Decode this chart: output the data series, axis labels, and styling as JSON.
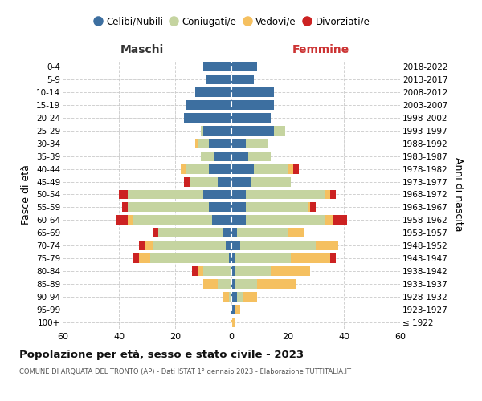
{
  "age_groups": [
    "100+",
    "95-99",
    "90-94",
    "85-89",
    "80-84",
    "75-79",
    "70-74",
    "65-69",
    "60-64",
    "55-59",
    "50-54",
    "45-49",
    "40-44",
    "35-39",
    "30-34",
    "25-29",
    "20-24",
    "15-19",
    "10-14",
    "5-9",
    "0-4"
  ],
  "birth_years": [
    "≤ 1922",
    "1923-1927",
    "1928-1932",
    "1933-1937",
    "1938-1942",
    "1943-1947",
    "1948-1952",
    "1953-1957",
    "1958-1962",
    "1963-1967",
    "1968-1972",
    "1973-1977",
    "1978-1982",
    "1983-1987",
    "1988-1992",
    "1993-1997",
    "1998-2002",
    "2003-2007",
    "2008-2012",
    "2013-2017",
    "2018-2022"
  ],
  "colors": {
    "celibe": "#3d6fa0",
    "coniugato": "#c5d4a0",
    "vedovo": "#f5c060",
    "divorziato": "#cc2222"
  },
  "male": {
    "celibe": [
      0,
      0,
      0,
      0,
      0,
      1,
      2,
      3,
      7,
      8,
      10,
      5,
      8,
      6,
      8,
      10,
      17,
      16,
      13,
      9,
      10
    ],
    "coniugato": [
      0,
      0,
      1,
      5,
      10,
      28,
      26,
      23,
      28,
      29,
      27,
      10,
      8,
      5,
      4,
      1,
      0,
      0,
      0,
      0,
      0
    ],
    "vedovo": [
      0,
      0,
      2,
      5,
      2,
      4,
      3,
      0,
      2,
      0,
      0,
      0,
      2,
      0,
      1,
      0,
      0,
      0,
      0,
      0,
      0
    ],
    "divorziato": [
      0,
      0,
      0,
      0,
      2,
      2,
      2,
      2,
      4,
      2,
      3,
      2,
      0,
      0,
      0,
      0,
      0,
      0,
      0,
      0,
      0
    ]
  },
  "female": {
    "celibe": [
      0,
      1,
      2,
      1,
      1,
      1,
      3,
      2,
      5,
      5,
      5,
      7,
      8,
      6,
      5,
      15,
      14,
      15,
      15,
      8,
      9
    ],
    "coniugato": [
      0,
      0,
      2,
      8,
      13,
      20,
      27,
      18,
      28,
      22,
      28,
      14,
      12,
      8,
      8,
      4,
      0,
      0,
      0,
      0,
      0
    ],
    "vedovo": [
      1,
      2,
      5,
      14,
      14,
      14,
      8,
      6,
      3,
      1,
      2,
      0,
      2,
      0,
      0,
      0,
      0,
      0,
      0,
      0,
      0
    ],
    "divorziato": [
      0,
      0,
      0,
      0,
      0,
      2,
      0,
      0,
      5,
      2,
      2,
      0,
      2,
      0,
      0,
      0,
      0,
      0,
      0,
      0,
      0
    ]
  },
  "xlim": 60,
  "title": "Popolazione per età, sesso e stato civile - 2023",
  "subtitle": "COMUNE DI ARQUATA DEL TRONTO (AP) - Dati ISTAT 1° gennaio 2023 - Elaborazione TUTTITALIA.IT",
  "xlabel_left": "Maschi",
  "xlabel_right": "Femmine",
  "ylabel_left": "Fasce di età",
  "ylabel_right": "Anni di nascita",
  "legend_labels": [
    "Celibi/Nubili",
    "Coniugati/e",
    "Vedovi/e",
    "Divorziati/e"
  ],
  "bg_color": "#ffffff",
  "grid_color": "#cccccc",
  "maschi_color": "#333333",
  "femmine_color": "#cc3333"
}
